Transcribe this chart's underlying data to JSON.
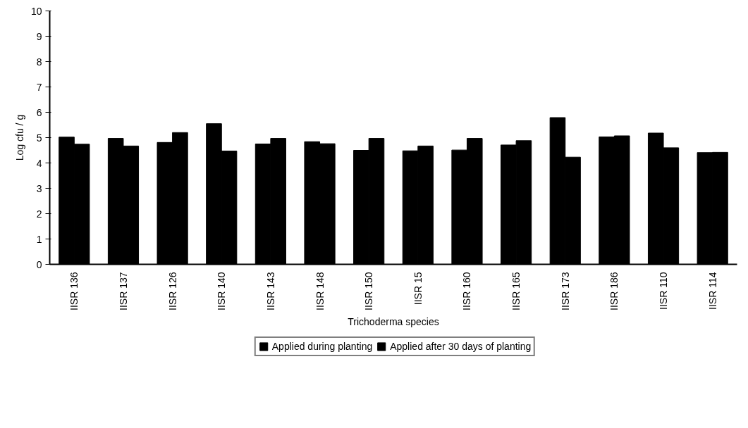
{
  "chart_data": {
    "type": "bar",
    "xlabel": "Trichoderma species",
    "ylabel": "Log cfu / g",
    "categories": [
      "IISR 136",
      "IISR 137",
      "IISR 126",
      "IISR 140",
      "IISR 143",
      "IISR 148",
      "IISR 150",
      "IISR 15",
      "IISR 160",
      "IISR 165",
      "IISR 173",
      "IISR 186",
      "IISR 110",
      "IISR 114"
    ],
    "series": [
      {
        "name": "Applied during planting",
        "color": "#000000",
        "values": [
          5.02,
          4.97,
          4.81,
          5.55,
          4.75,
          4.84,
          4.5,
          4.48,
          4.51,
          4.71,
          5.79,
          5.03,
          5.18,
          4.41
        ]
      },
      {
        "name": "Applied after 30 days of planting",
        "color": "#000000",
        "values": [
          4.74,
          4.67,
          5.2,
          4.47,
          4.97,
          4.76,
          4.97,
          4.67,
          4.97,
          4.88,
          4.23,
          5.07,
          4.6,
          4.42
        ]
      }
    ],
    "ylim": [
      0,
      10
    ],
    "yticks": [
      0,
      1,
      2,
      3,
      4,
      5,
      6,
      7,
      8,
      9,
      10
    ],
    "grid": false,
    "legend": "bottom"
  }
}
